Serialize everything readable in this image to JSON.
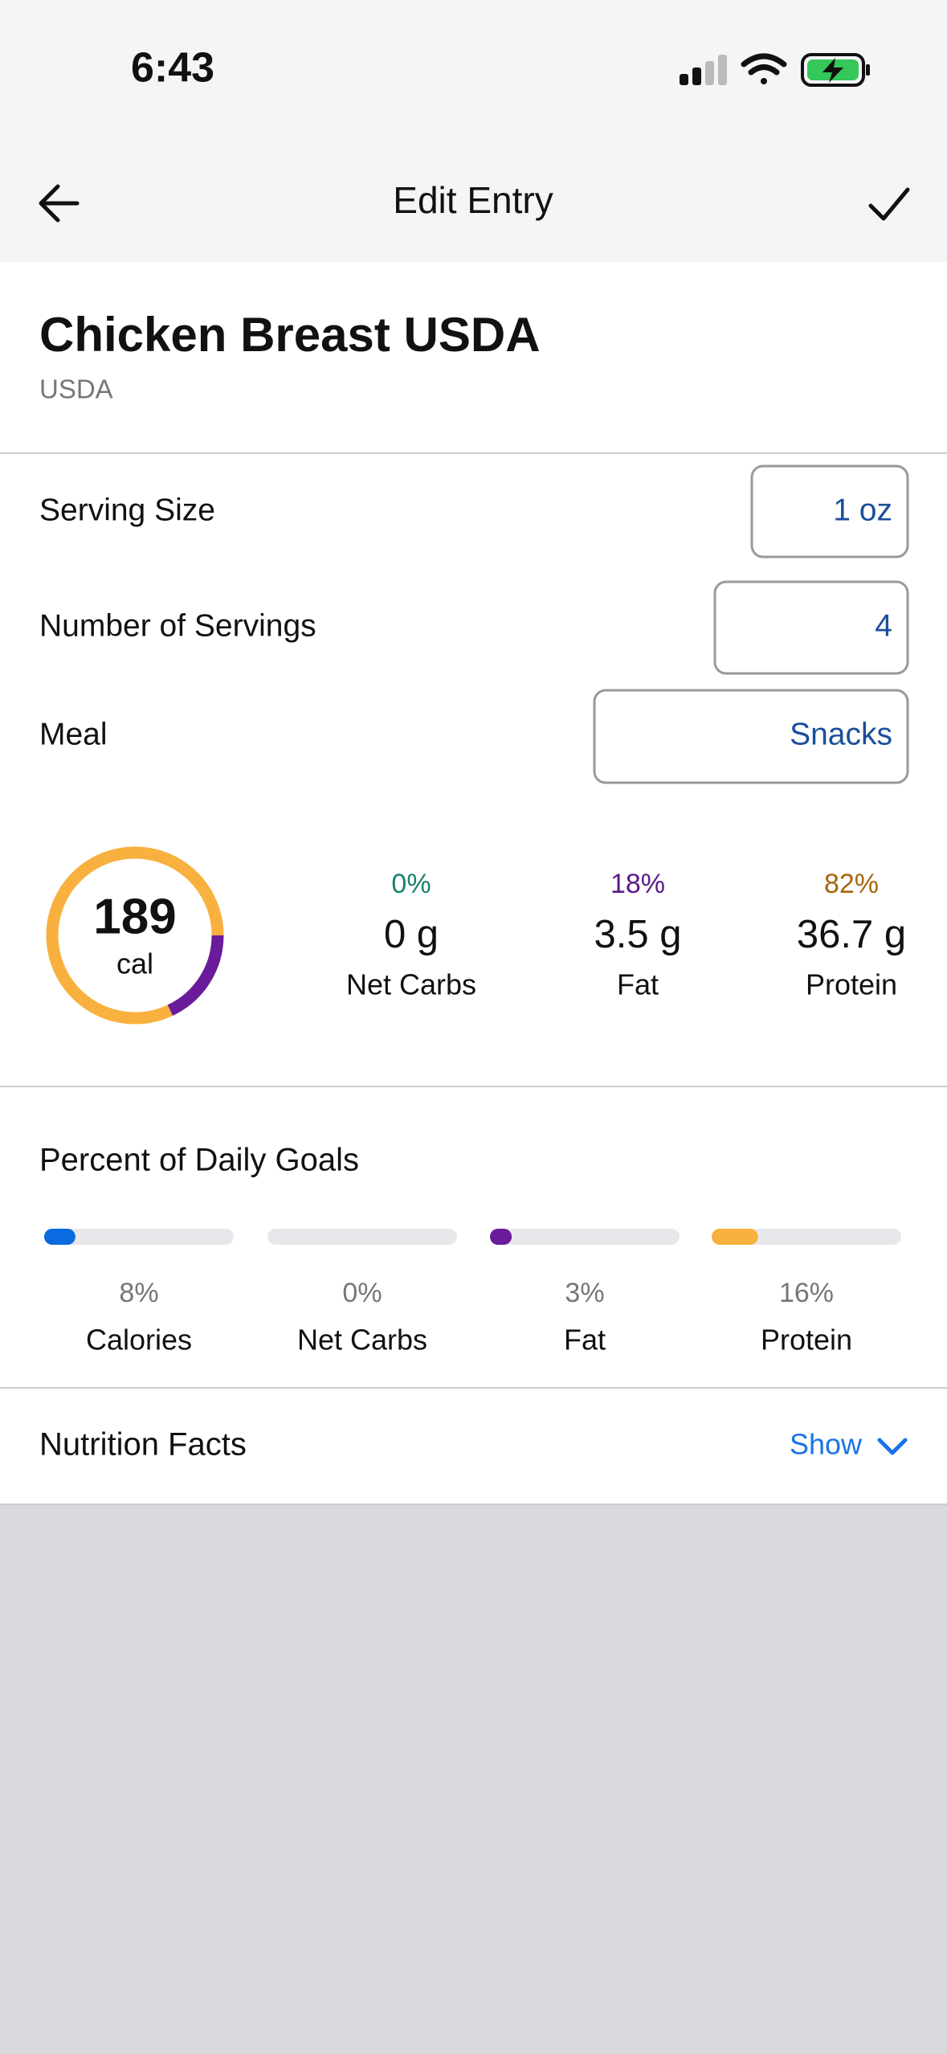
{
  "status_bar": {
    "time": "6:43"
  },
  "nav": {
    "title": "Edit Entry"
  },
  "food": {
    "name": "Chicken Breast USDA",
    "source": "USDA"
  },
  "form": {
    "rows": [
      {
        "label": "Serving Size",
        "value": "1 oz"
      },
      {
        "label": "Number of Servings",
        "value": "4"
      },
      {
        "label": "Meal",
        "value": "Snacks"
      }
    ]
  },
  "summary": {
    "calories": 189,
    "calories_unit": "cal",
    "macros": [
      {
        "name": "Net Carbs",
        "percent": 0,
        "percent_label": "0%",
        "amount": "0 g",
        "label_color": "#1a7f6e",
        "ring_color": "#1a7f6e"
      },
      {
        "name": "Fat",
        "percent": 18,
        "percent_label": "18%",
        "amount": "3.5 g",
        "label_color": "#5b1a8a",
        "ring_color": "#6a1b9a"
      },
      {
        "name": "Protein",
        "percent": 82,
        "percent_label": "82%",
        "amount": "36.7 g",
        "label_color": "#a8650e",
        "ring_color": "#f8b13e"
      }
    ]
  },
  "daily_goals": {
    "title": "Percent of Daily Goals",
    "items": [
      {
        "name": "Calories",
        "value": 8,
        "value_label": "8%",
        "color": "#0a6ae0"
      },
      {
        "name": "Net Carbs",
        "value": 0,
        "value_label": "0%",
        "color": "#1a7f6e"
      },
      {
        "name": "Fat",
        "value": 3,
        "value_label": "3%",
        "color": "#6a1b9a"
      },
      {
        "name": "Protein",
        "value": 16,
        "value_label": "16%",
        "color": "#f8b13e"
      }
    ]
  },
  "nutrition_facts": {
    "title": "Nutrition Facts",
    "action": "Show"
  }
}
